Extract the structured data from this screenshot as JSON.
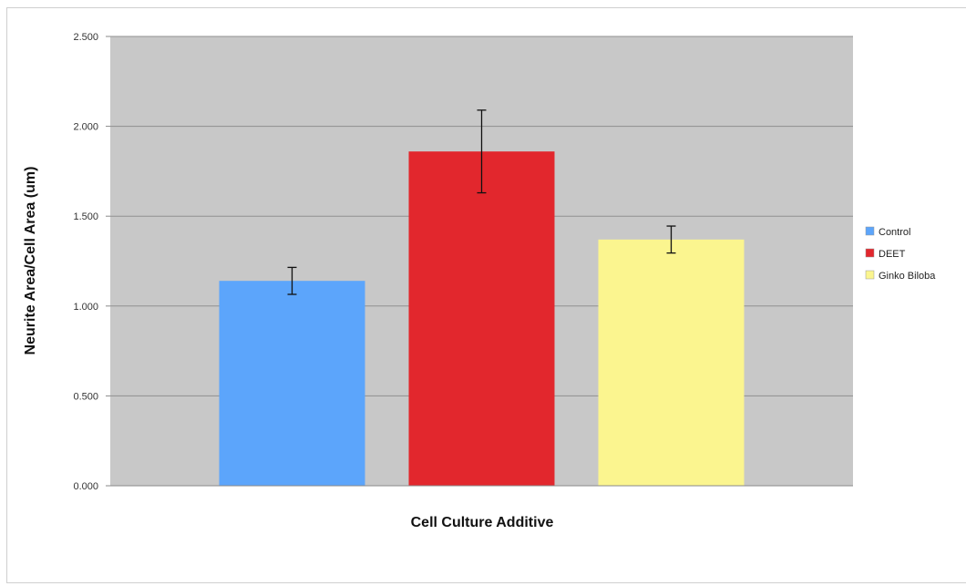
{
  "chart_data": {
    "type": "bar",
    "title": "",
    "xlabel": "Cell Culture Additive",
    "ylabel": "Neurite Area/Cell Area (um)",
    "ylim": [
      0,
      2.5
    ],
    "yticks": [
      "0.000",
      "0.500",
      "1.000",
      "1.500",
      "2.000",
      "2.500"
    ],
    "grid": true,
    "legend_position": "right",
    "plot_background": "#c8c8c8",
    "series": [
      {
        "name": "Control",
        "value": 1.14,
        "error": 0.075,
        "color": "#5ca5fb"
      },
      {
        "name": "DEET",
        "value": 1.86,
        "error": 0.23,
        "color": "#e2272d"
      },
      {
        "name": "Ginko Biloba",
        "value": 1.37,
        "error": 0.075,
        "color": "#fbf58f"
      }
    ]
  }
}
